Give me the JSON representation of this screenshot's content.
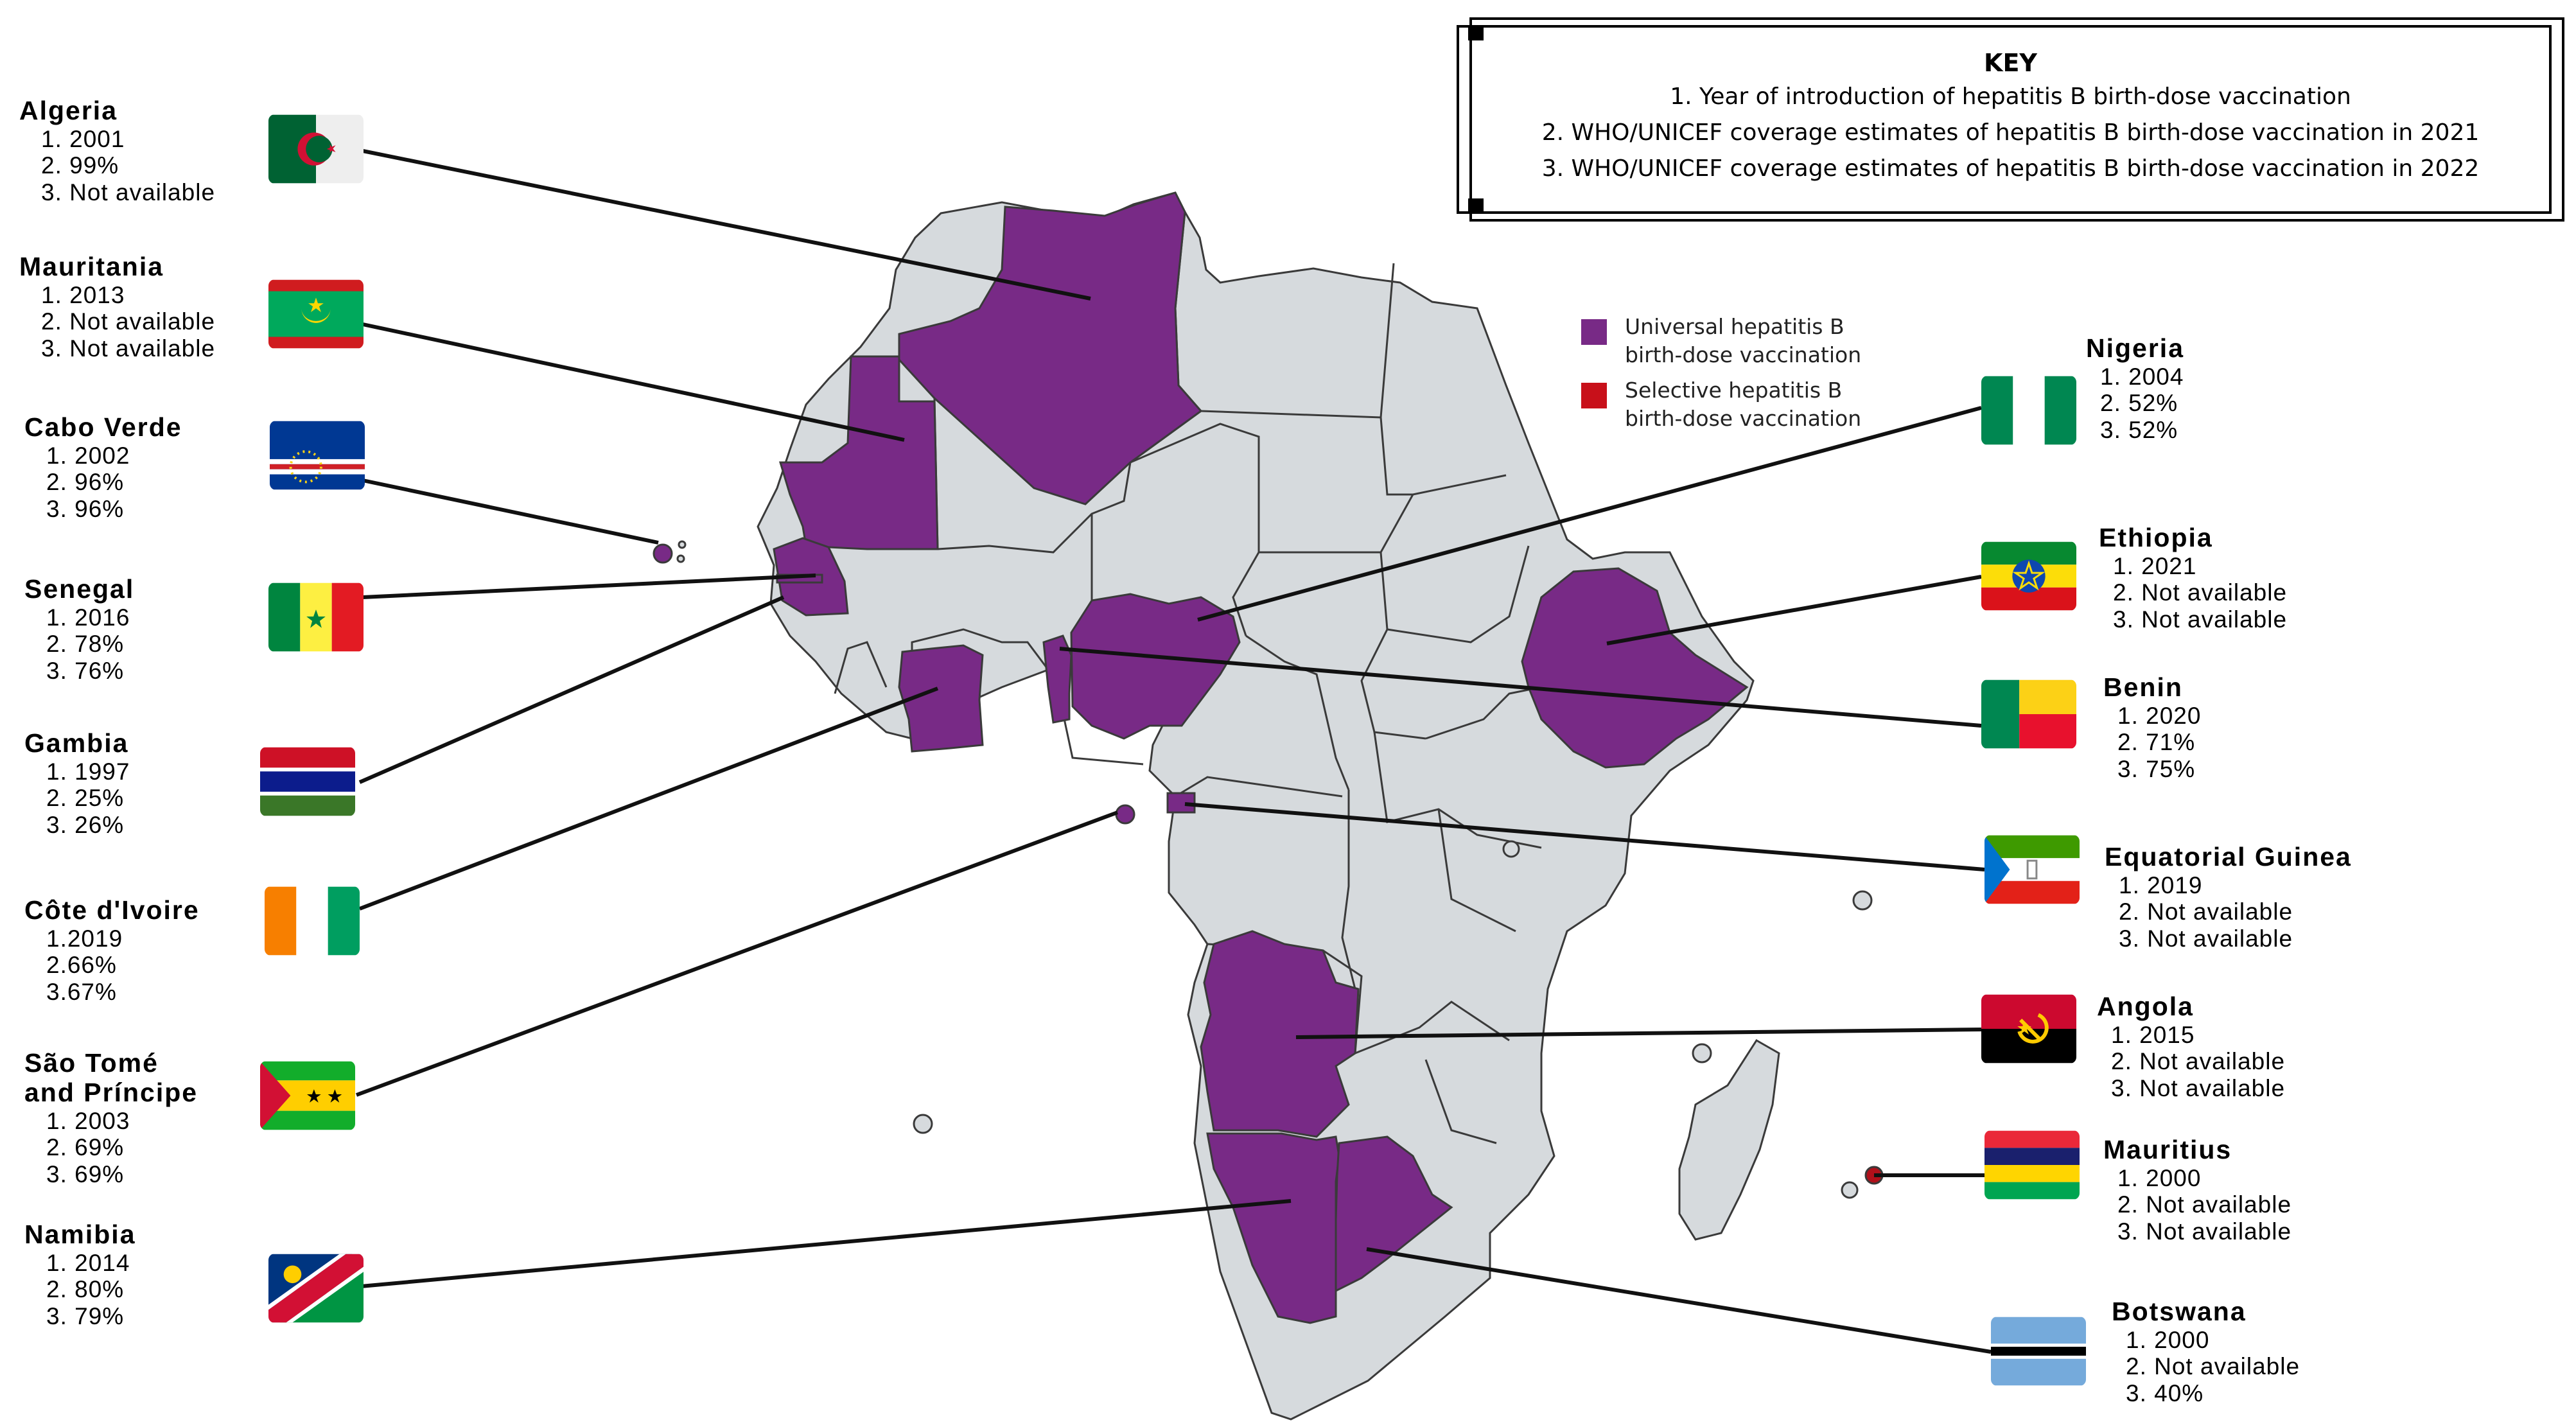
{
  "key": {
    "title": "KEY",
    "items": [
      "1. Year of introduction of hepatitis B birth-dose vaccination",
      "2. WHO/UNICEF coverage estimates of hepatitis B birth-dose vaccination in 2021",
      "3. WHO/UNICEF coverage estimates of hepatitis B birth-dose vaccination in 2022"
    ]
  },
  "legend": {
    "universal": {
      "line1": "Universal hepatitis B",
      "line2": "birth-dose vaccination",
      "color": "#782a86"
    },
    "selective": {
      "line1": "Selective hepatitis B",
      "line2": "birth-dose vaccination",
      "color": "#c8101a"
    }
  },
  "colors": {
    "land": "#d6dadd",
    "border": "#3a3a3a",
    "universal": "#782a86",
    "selective": "#b0101a",
    "leader": "#111111"
  },
  "countries": [
    {
      "name": "Algeria",
      "stats": [
        "1. 2001",
        "2. 99%",
        "3. Not available"
      ],
      "flag": "algeria-flag"
    },
    {
      "name": "Mauritania",
      "stats": [
        "1. 2013",
        "2. Not available",
        "3. Not available"
      ],
      "flag": "mauritania-flag"
    },
    {
      "name": "Cabo Verde",
      "stats": [
        "1. 2002",
        "2. 96%",
        "3. 96%"
      ],
      "flag": "cabo-verde-flag"
    },
    {
      "name": "Senegal",
      "stats": [
        "1. 2016",
        "2. 78%",
        "3. 76%"
      ],
      "flag": "senegal-flag"
    },
    {
      "name": "Gambia",
      "stats": [
        "1. 1997",
        "2. 25%",
        "3. 26%"
      ],
      "flag": "gambia-flag"
    },
    {
      "name": "Côte d'Ivoire",
      "stats": [
        "1.2019",
        "2.66%",
        "3.67%"
      ],
      "flag": "cote-divoire-flag"
    },
    {
      "name": "São Tomé",
      "name2": "and Príncipe",
      "stats": [
        "1. 2003",
        "2. 69%",
        "3. 69%"
      ],
      "flag": "sao-tome-flag"
    },
    {
      "name": "Namibia",
      "stats": [
        "1. 2014",
        "2. 80%",
        "3. 79%"
      ],
      "flag": "namibia-flag"
    },
    {
      "name": "Nigeria",
      "stats": [
        "1. 2004",
        "2. 52%",
        "3. 52%"
      ],
      "flag": "nigeria-flag"
    },
    {
      "name": "Ethiopia",
      "stats": [
        "1. 2021",
        "2. Not available",
        "3. Not available"
      ],
      "flag": "ethiopia-flag"
    },
    {
      "name": "Benin",
      "stats": [
        "1. 2020",
        "2. 71%",
        "3. 75%"
      ],
      "flag": "benin-flag"
    },
    {
      "name": "Equatorial Guinea",
      "stats": [
        "1. 2019",
        "2. Not available",
        "3. Not available"
      ],
      "flag": "equatorial-guinea-flag"
    },
    {
      "name": "Angola",
      "stats": [
        "1. 2015",
        "2. Not available",
        "3. Not available"
      ],
      "flag": "angola-flag"
    },
    {
      "name": "Mauritius",
      "stats": [
        "1. 2000",
        "2. Not available",
        "3. Not available"
      ],
      "flag": "mauritius-flag"
    },
    {
      "name": "Botswana",
      "stats": [
        "1. 2000",
        "2. Not available",
        "3. 40%"
      ],
      "flag": "botswana-flag"
    }
  ]
}
